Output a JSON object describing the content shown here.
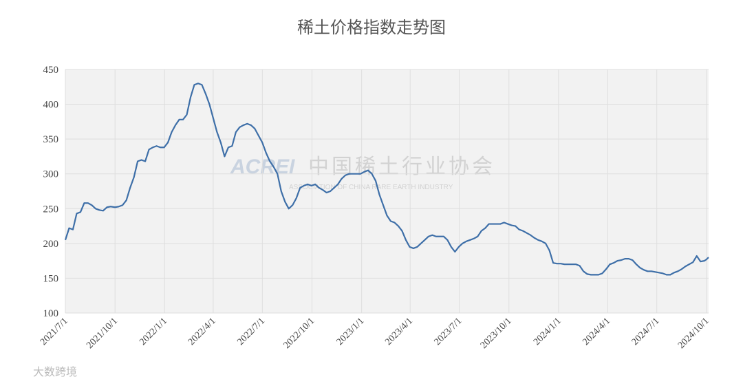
{
  "chart_data": {
    "type": "line",
    "title": "稀土价格指数走势图",
    "x": [
      "2021-07-01",
      "2021-07-08",
      "2021-07-15",
      "2021-07-22",
      "2021-07-29",
      "2021-08-05",
      "2021-08-12",
      "2021-08-19",
      "2021-08-26",
      "2021-09-02",
      "2021-09-09",
      "2021-09-16",
      "2021-09-23",
      "2021-10-01",
      "2021-10-08",
      "2021-10-15",
      "2021-10-22",
      "2021-10-29",
      "2021-11-05",
      "2021-11-12",
      "2021-11-19",
      "2021-11-26",
      "2021-12-03",
      "2021-12-10",
      "2021-12-17",
      "2021-12-24",
      "2021-12-31",
      "2022-01-07",
      "2022-01-14",
      "2022-01-21",
      "2022-01-28",
      "2022-02-04",
      "2022-02-11",
      "2022-02-18",
      "2022-02-25",
      "2022-03-04",
      "2022-03-11",
      "2022-03-18",
      "2022-03-25",
      "2022-04-01",
      "2022-04-08",
      "2022-04-15",
      "2022-04-22",
      "2022-04-29",
      "2022-05-06",
      "2022-05-13",
      "2022-05-20",
      "2022-05-27",
      "2022-06-03",
      "2022-06-10",
      "2022-06-17",
      "2022-06-24",
      "2022-07-01",
      "2022-07-08",
      "2022-07-15",
      "2022-07-22",
      "2022-07-29",
      "2022-08-05",
      "2022-08-12",
      "2022-08-19",
      "2022-08-26",
      "2022-09-02",
      "2022-09-09",
      "2022-09-16",
      "2022-09-23",
      "2022-09-30",
      "2022-10-07",
      "2022-10-14",
      "2022-10-21",
      "2022-10-28",
      "2022-11-04",
      "2022-11-11",
      "2022-11-18",
      "2022-11-25",
      "2022-12-02",
      "2022-12-09",
      "2022-12-16",
      "2022-12-23",
      "2022-12-30",
      "2023-01-06",
      "2023-01-13",
      "2023-01-20",
      "2023-01-27",
      "2023-02-03",
      "2023-02-10",
      "2023-02-17",
      "2023-02-24",
      "2023-03-03",
      "2023-03-10",
      "2023-03-17",
      "2023-03-24",
      "2023-03-31",
      "2023-04-07",
      "2023-04-14",
      "2023-04-21",
      "2023-04-28",
      "2023-05-05",
      "2023-05-12",
      "2023-05-19",
      "2023-05-26",
      "2023-06-02",
      "2023-06-09",
      "2023-06-16",
      "2023-06-23",
      "2023-06-30",
      "2023-07-07",
      "2023-07-14",
      "2023-07-21",
      "2023-07-28",
      "2023-08-04",
      "2023-08-11",
      "2023-08-18",
      "2023-08-25",
      "2023-09-01",
      "2023-09-08",
      "2023-09-15",
      "2023-09-22",
      "2023-09-29",
      "2023-10-06",
      "2023-10-13",
      "2023-10-20",
      "2023-10-27",
      "2023-11-03",
      "2023-11-10",
      "2023-11-17",
      "2023-11-24",
      "2023-12-01",
      "2023-12-08",
      "2023-12-15",
      "2023-12-22",
      "2023-12-29",
      "2024-01-05",
      "2024-01-12",
      "2024-01-19",
      "2024-01-26",
      "2024-02-02",
      "2024-02-09",
      "2024-02-16",
      "2024-02-23",
      "2024-03-01",
      "2024-03-08",
      "2024-03-15",
      "2024-03-22",
      "2024-03-29",
      "2024-04-05",
      "2024-04-12",
      "2024-04-19",
      "2024-04-26",
      "2024-05-03",
      "2024-05-10",
      "2024-05-17",
      "2024-05-24",
      "2024-05-31",
      "2024-06-07",
      "2024-06-14",
      "2024-06-21",
      "2024-06-28",
      "2024-07-05",
      "2024-07-12",
      "2024-07-19",
      "2024-07-26",
      "2024-08-02",
      "2024-08-09",
      "2024-08-16",
      "2024-08-23",
      "2024-08-30",
      "2024-09-06",
      "2024-09-13",
      "2024-09-20",
      "2024-09-27",
      "2024-10-01",
      "2024-10-05"
    ],
    "series": [
      {
        "color": "#3e6fa8",
        "values": [
          205,
          222,
          220,
          243,
          245,
          258,
          258,
          255,
          250,
          248,
          247,
          252,
          253,
          252,
          253,
          255,
          262,
          280,
          295,
          318,
          320,
          318,
          335,
          338,
          340,
          338,
          338,
          345,
          360,
          370,
          378,
          378,
          385,
          410,
          428,
          430,
          428,
          415,
          400,
          380,
          360,
          345,
          325,
          338,
          340,
          360,
          367,
          370,
          372,
          370,
          365,
          355,
          345,
          330,
          318,
          310,
          300,
          275,
          260,
          250,
          255,
          265,
          280,
          283,
          285,
          283,
          285,
          280,
          277,
          273,
          275,
          280,
          285,
          293,
          298,
          300,
          300,
          300,
          300,
          303,
          305,
          300,
          290,
          270,
          255,
          240,
          232,
          230,
          225,
          218,
          205,
          195,
          193,
          195,
          200,
          205,
          210,
          212,
          210,
          210,
          210,
          205,
          195,
          188,
          195,
          200,
          203,
          205,
          207,
          210,
          218,
          222,
          228,
          228,
          228,
          228,
          230,
          228,
          226,
          225,
          220,
          218,
          215,
          212,
          208,
          205,
          203,
          200,
          190,
          172,
          171,
          171,
          170,
          170,
          170,
          170,
          168,
          160,
          156,
          155,
          155,
          155,
          157,
          163,
          170,
          172,
          175,
          176,
          178,
          178,
          176,
          170,
          165,
          162,
          160,
          160,
          159,
          158,
          157,
          155,
          155,
          158,
          160,
          163,
          167,
          170,
          173,
          182,
          174,
          175,
          177,
          180
        ]
      }
    ],
    "xlim": [
      "2021-07-01",
      "2024-10-05"
    ],
    "xticks": [
      {
        "value": "2021-07-01",
        "label": "2021/7/1"
      },
      {
        "value": "2021-10-01",
        "label": "2021/10/1"
      },
      {
        "value": "2022-01-01",
        "label": "2022/1/1"
      },
      {
        "value": "2022-04-01",
        "label": "2022/4/1"
      },
      {
        "value": "2022-07-01",
        "label": "2022/7/1"
      },
      {
        "value": "2022-10-01",
        "label": "2022/10/1"
      },
      {
        "value": "2023-01-01",
        "label": "2023/1/1"
      },
      {
        "value": "2023-04-01",
        "label": "2023/4/1"
      },
      {
        "value": "2023-07-01",
        "label": "2023/7/1"
      },
      {
        "value": "2023-10-01",
        "label": "2023/10/1"
      },
      {
        "value": "2024-01-01",
        "label": "2024/1/1"
      },
      {
        "value": "2024-04-01",
        "label": "2024/4/1"
      },
      {
        "value": "2024-07-01",
        "label": "2024/7/1"
      },
      {
        "value": "2024-10-01",
        "label": "2024/10/1"
      }
    ],
    "ylim": [
      100,
      450
    ],
    "yticks": [
      100,
      150,
      200,
      250,
      300,
      350,
      400,
      450
    ],
    "grid": true
  },
  "watermark": {
    "logo": "ACREI",
    "name": "中国稀土行业协会",
    "subtitle": "ASSOCIATION OF CHINA RARE EARTH INDUSTRY"
  },
  "source_mark": "大数跨境"
}
